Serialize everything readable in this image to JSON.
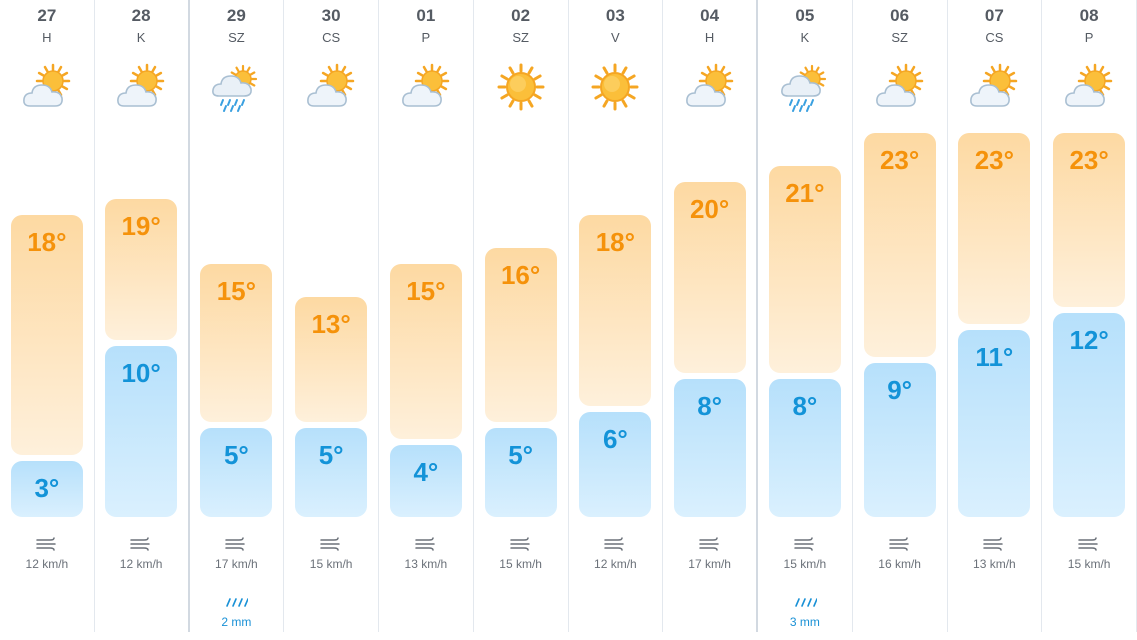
{
  "forecast": {
    "days": [
      {
        "date": "27",
        "weekday": "H",
        "icon": "partly-cloudy-icon",
        "max": "18°",
        "min": "3°",
        "max_value": 18,
        "min_value": 3,
        "wind": "12 km/h",
        "rain": ""
      },
      {
        "date": "28",
        "weekday": "K",
        "icon": "partly-cloudy-icon",
        "max": "19°",
        "min": "10°",
        "max_value": 19,
        "min_value": 10,
        "wind": "12 km/h",
        "rain": ""
      },
      {
        "date": "29",
        "weekday": "SZ",
        "icon": "rain-icon",
        "max": "15°",
        "min": "5°",
        "max_value": 15,
        "min_value": 5,
        "wind": "17 km/h",
        "rain": "2 mm"
      },
      {
        "date": "30",
        "weekday": "CS",
        "icon": "partly-cloudy-icon",
        "max": "13°",
        "min": "5°",
        "max_value": 13,
        "min_value": 5,
        "wind": "15 km/h",
        "rain": ""
      },
      {
        "date": "01",
        "weekday": "P",
        "icon": "partly-cloudy-icon",
        "max": "15°",
        "min": "4°",
        "max_value": 15,
        "min_value": 4,
        "wind": "13 km/h",
        "rain": ""
      },
      {
        "date": "02",
        "weekday": "SZ",
        "icon": "sun-icon",
        "max": "16°",
        "min": "5°",
        "max_value": 16,
        "min_value": 5,
        "wind": "15 km/h",
        "rain": ""
      },
      {
        "date": "03",
        "weekday": "V",
        "icon": "sun-icon",
        "max": "18°",
        "min": "6°",
        "max_value": 18,
        "min_value": 6,
        "wind": "12 km/h",
        "rain": ""
      },
      {
        "date": "04",
        "weekday": "H",
        "icon": "partly-cloudy-icon",
        "max": "20°",
        "min": "8°",
        "max_value": 20,
        "min_value": 8,
        "wind": "17 km/h",
        "rain": ""
      },
      {
        "date": "05",
        "weekday": "K",
        "icon": "rain-icon",
        "max": "21°",
        "min": "8°",
        "max_value": 21,
        "min_value": 8,
        "wind": "15 km/h",
        "rain": "3 mm"
      },
      {
        "date": "06",
        "weekday": "SZ",
        "icon": "partly-cloudy-icon",
        "max": "23°",
        "min": "9°",
        "max_value": 23,
        "min_value": 9,
        "wind": "16 km/h",
        "rain": ""
      },
      {
        "date": "07",
        "weekday": "CS",
        "icon": "partly-cloudy-icon",
        "max": "23°",
        "min": "11°",
        "max_value": 23,
        "min_value": 11,
        "wind": "13 km/h",
        "rain": ""
      },
      {
        "date": "08",
        "weekday": "P",
        "icon": "partly-cloudy-icon",
        "max": "23°",
        "min": "12°",
        "max_value": 23,
        "min_value": 12,
        "wind": "15 km/h",
        "rain": ""
      }
    ],
    "colors": {
      "max_text": "#f5920b",
      "min_text": "#1393d8",
      "max_bar": "#fdd9a2",
      "min_bar": "#b6e0fb",
      "rain_text": "#1a91d6"
    }
  }
}
